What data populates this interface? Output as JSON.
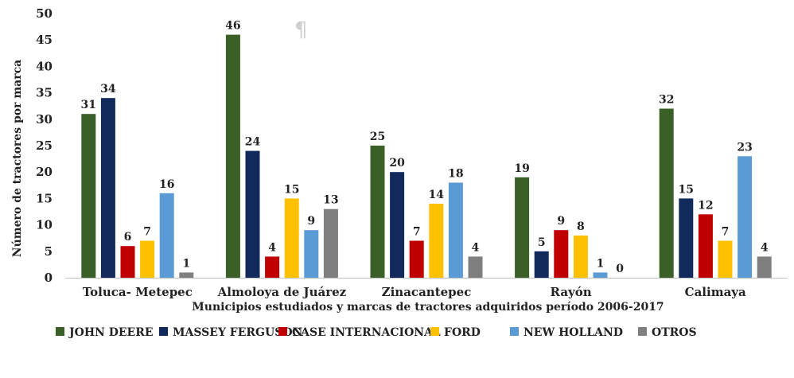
{
  "chart_data": {
    "type": "bar",
    "title": "",
    "xlabel": "Municipios estudiados y marcas de tractores adquiridos período 2006-2017",
    "ylabel": "Número de tractores por marca",
    "ylim": [
      0,
      50
    ],
    "yticks": [
      0,
      5,
      10,
      15,
      20,
      25,
      30,
      35,
      40,
      45,
      50
    ],
    "grid": false,
    "legend_position": "bottom",
    "categories": [
      "Toluca- Metepec",
      "Almoloya de Juárez",
      "Zinacantepec",
      "Rayón",
      "Calimaya"
    ],
    "series": [
      {
        "name": "JOHN DEERE",
        "color": "#3A5F27",
        "values": [
          31,
          46,
          25,
          19,
          32
        ]
      },
      {
        "name": "MASSEY FERGUSON",
        "color": "#12295C",
        "values": [
          34,
          24,
          20,
          5,
          15
        ]
      },
      {
        "name": "CASE INTERNACIONAL",
        "color": "#C00000",
        "values": [
          6,
          4,
          7,
          9,
          12
        ]
      },
      {
        "name": "FORD",
        "color": "#FFC000",
        "values": [
          7,
          15,
          14,
          8,
          7
        ]
      },
      {
        "name": "NEW HOLLAND",
        "color": "#5B9BD5",
        "values": [
          16,
          9,
          18,
          1,
          23
        ]
      },
      {
        "name": "OTROS",
        "color": "#7F7F7F",
        "values": [
          1,
          13,
          4,
          0,
          4
        ]
      }
    ],
    "annotations": [
      "¶"
    ]
  }
}
